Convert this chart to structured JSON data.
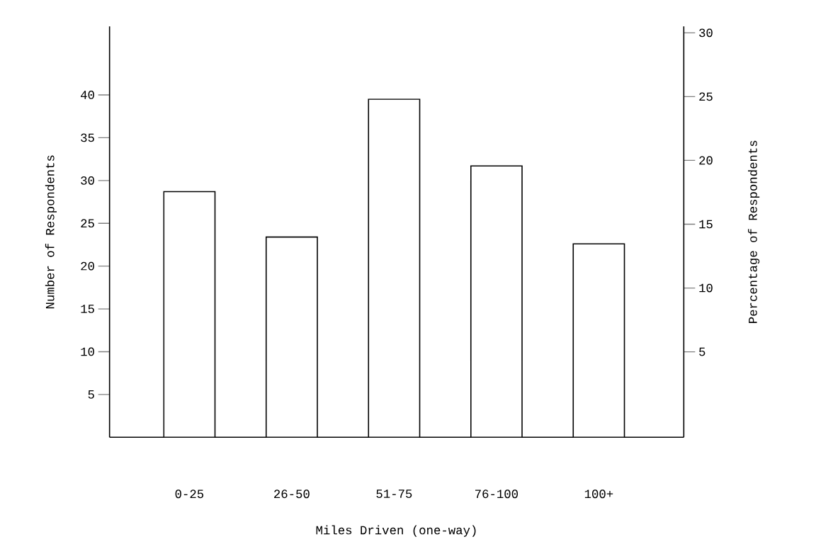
{
  "chart_data": {
    "type": "bar",
    "xlabel": "Miles Driven (one-way)",
    "ylabel": "Number of Respondents",
    "y2label": "Percentage of Respondents",
    "categories": [
      "0-25",
      "26-50",
      "51-75",
      "76-100",
      "100+"
    ],
    "values": [
      28.7,
      23.4,
      39.5,
      31.7,
      22.6
    ],
    "color": "#ffffff",
    "ylim": [
      0,
      48
    ],
    "yticks": [
      5,
      10,
      15,
      20,
      25,
      30,
      35,
      40
    ],
    "y2lim": [
      -1.7,
      30.5
    ],
    "y2ticks": [
      5,
      10,
      15,
      20,
      25,
      30
    ],
    "grid": false
  }
}
